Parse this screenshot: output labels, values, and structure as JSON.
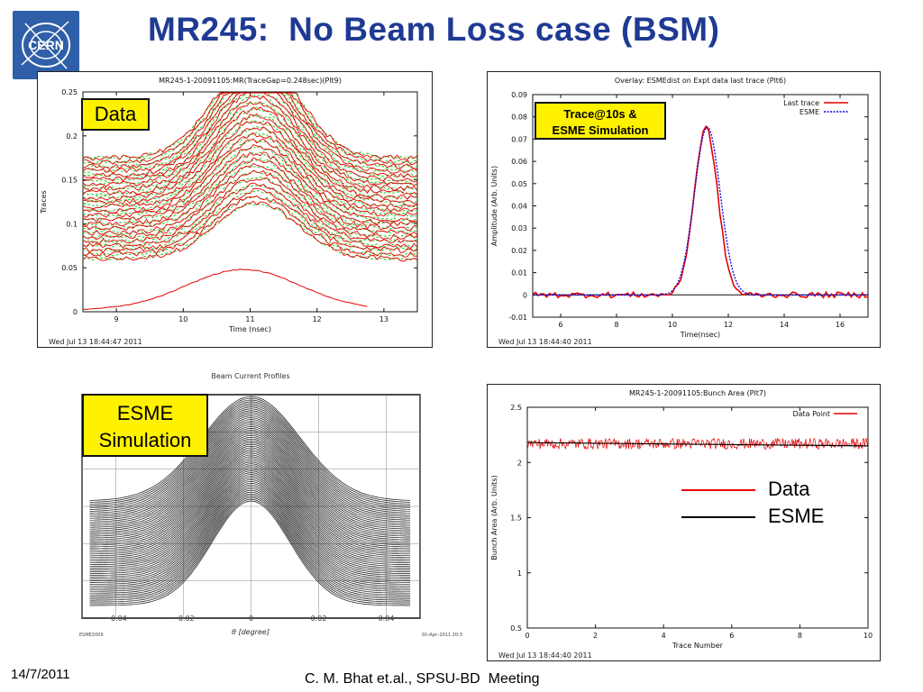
{
  "slide": {
    "title": "MR245:  No Beam Loss case (BSM)",
    "logo_text": "CERN",
    "footer_date": "14/7/2011",
    "footer_credit": "C. M. Bhat et.al., SPSU-BD  Meeting"
  },
  "colors": {
    "title": "#1f3a93",
    "data_red": "#e60000",
    "esme_green": "#22cc22",
    "esme_blue": "#0000ee",
    "callout_yellow": "#fff200"
  },
  "chart_data": [
    {
      "type": "line",
      "title": "MR245-1-20091105:MR(TraceGap=0.248sec)(Plt9)",
      "xlabel": "Time (nsec)",
      "ylabel": "Traces",
      "xlim": [
        8.5,
        13.5
      ],
      "ylim": [
        0,
        0.25
      ],
      "x_ticks": [
        9,
        10,
        11,
        12,
        13
      ],
      "y_ticks": [
        0,
        0.05,
        0.1,
        0.15,
        0.2,
        0.25
      ],
      "grid": false,
      "callout": "Data",
      "timestamp": "Wed Jul 13 18:44:47 2011",
      "series_description": {
        "n_traces": 24,
        "trace_spacing": 0.005,
        "first_baseline": 0.005,
        "peak_time": 11.1,
        "peak_amplitude": 0.115,
        "red": "measured traces",
        "green": "simulated traces (dashed)"
      }
    },
    {
      "type": "line",
      "title": "Overlay: ESMEdist on Expt data last trace (Plt6)",
      "xlabel": "Time(nsec)",
      "ylabel": "Amplitude (Arb. Units)",
      "xlim": [
        5,
        17
      ],
      "ylim": [
        -0.01,
        0.09
      ],
      "x_ticks": [
        6,
        8,
        10,
        12,
        14,
        16
      ],
      "y_ticks": [
        -0.01,
        0,
        0.01,
        0.02,
        0.03,
        0.04,
        0.05,
        0.06,
        0.07,
        0.08,
        0.09
      ],
      "grid": false,
      "legend_position": "top-right",
      "legend": [
        "Last trace",
        "ESME"
      ],
      "callout": [
        "Trace@10s &",
        "ESME Simulation"
      ],
      "timestamp": "Wed Jul 13 18:44:40 2011",
      "peak_time": 11.2,
      "peak_amplitude": 0.075,
      "series": [
        {
          "name": "Last trace",
          "color": "#e60000"
        },
        {
          "name": "ESME",
          "color": "#0000ee"
        }
      ]
    },
    {
      "type": "line",
      "title": "Beam Current Profiles",
      "xlabel": "θ [degree]",
      "ylabel": "",
      "xlim": [
        -0.05,
        0.05
      ],
      "x_ticks": [
        -0.04,
        -0.02,
        0,
        0.02,
        0.04
      ],
      "x_tick_labels": [
        "−0.04",
        "−0.02",
        "0",
        "0.02",
        "0.04"
      ],
      "grid": true,
      "callout": [
        "ESME",
        "Simulation"
      ],
      "corner_left": "ESME2009",
      "corner_right": "30–Apr–2011 20:3",
      "series_description": {
        "n_profiles": 60,
        "color": "#111111"
      }
    },
    {
      "type": "line",
      "title": "MR245-1-20091105:Bunch Area (Plt7)",
      "xlabel": "Trace Number",
      "ylabel": "Bunch Area (Arb. Units)",
      "xlim": [
        0,
        10
      ],
      "ylim": [
        0.5,
        2.5
      ],
      "x_ticks": [
        0,
        2,
        4,
        6,
        8,
        10
      ],
      "y_ticks": [
        0.5,
        1,
        1.5,
        2,
        2.5
      ],
      "grid": false,
      "legend_position": "top-right",
      "legend": [
        "Data Point"
      ],
      "timestamp": "Wed Jul 13 18:44:40 2011",
      "series": [
        {
          "name": "Data",
          "color": "#e60000",
          "mean": 2.17,
          "noise": 0.05
        },
        {
          "name": "ESME",
          "color": "#000000",
          "values_y": [
            2.18,
            2.15
          ]
        }
      ],
      "external_legend": [
        "Data",
        "ESME"
      ]
    }
  ]
}
